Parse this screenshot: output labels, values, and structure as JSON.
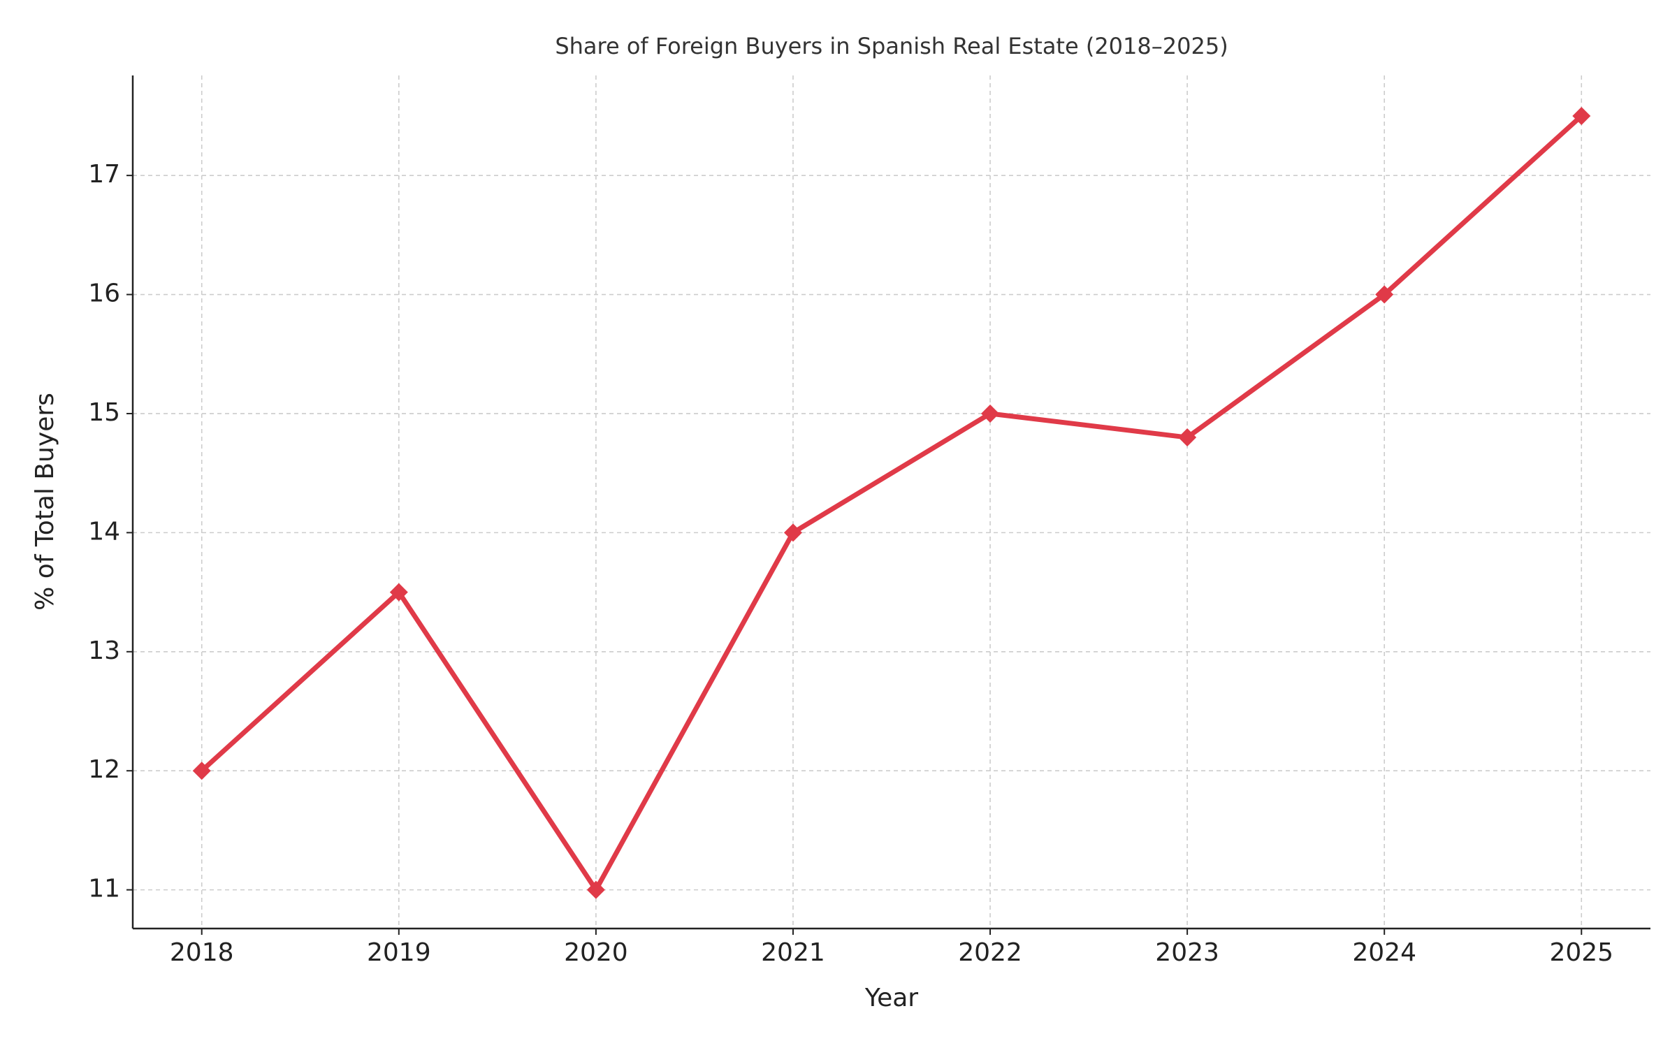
{
  "chart_data": {
    "type": "line",
    "title": "Share of Foreign Buyers in Spanish Real Estate (2018–2025)",
    "x_label": "Year",
    "y_label": "% of Total Buyers",
    "x": [
      2018,
      2019,
      2020,
      2021,
      2022,
      2023,
      2024,
      2025
    ],
    "series": [
      {
        "color": "#e03a48",
        "values": [
          12,
          13.5,
          11,
          14,
          15,
          14.8,
          16,
          17.5
        ]
      }
    ],
    "xlim": [
      2017.65,
      2025.35
    ],
    "xticks": [
      2018,
      2019,
      2020,
      2021,
      2022,
      2023,
      2024,
      2025
    ],
    "ylim": [
      10.675,
      17.84
    ],
    "yticks": [
      11,
      12,
      13,
      14,
      15,
      16,
      17
    ],
    "grid": true,
    "marker": "diamond"
  }
}
